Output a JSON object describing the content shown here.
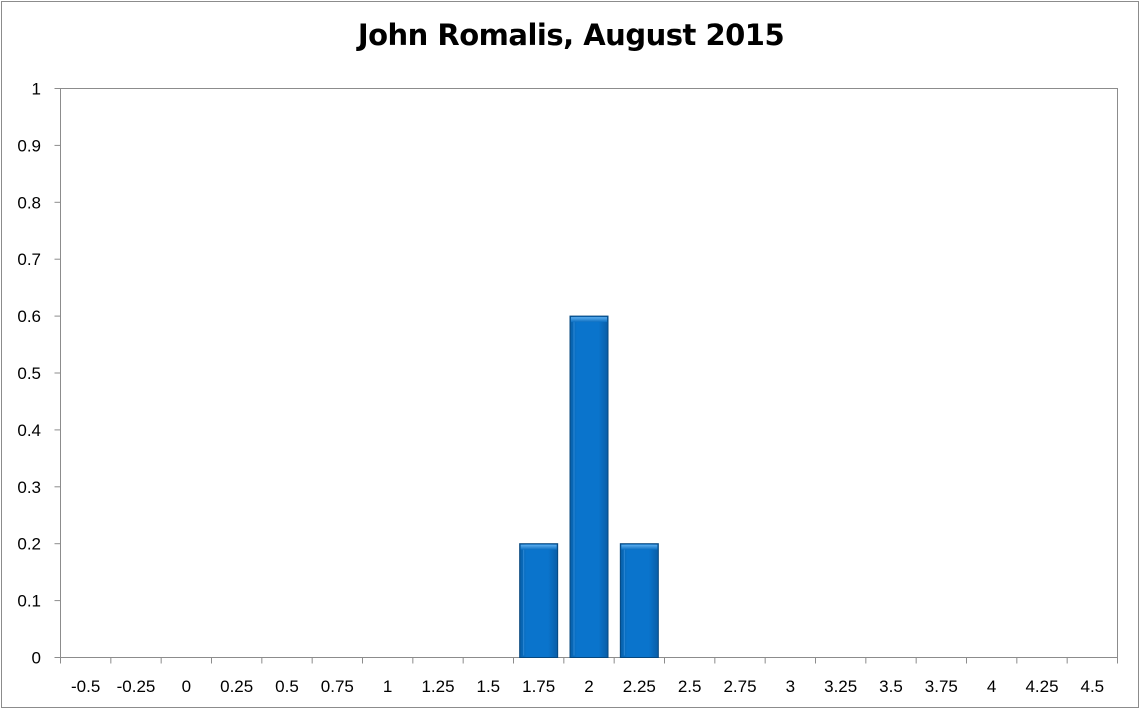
{
  "chart_data": {
    "type": "bar",
    "title": "John Romalis, August 2015",
    "xlabel": "",
    "ylabel": "",
    "categories": [
      "-0.5",
      "-0.25",
      "0",
      "0.25",
      "0.5",
      "0.75",
      "1",
      "1.25",
      "1.5",
      "1.75",
      "2",
      "2.25",
      "2.5",
      "2.75",
      "3",
      "3.25",
      "3.5",
      "3.75",
      "4",
      "4.25",
      "4.5"
    ],
    "values": [
      0,
      0,
      0,
      0,
      0,
      0,
      0,
      0,
      0,
      0.2,
      0.6,
      0.2,
      0,
      0,
      0,
      0,
      0,
      0,
      0,
      0,
      0
    ],
    "ylim": [
      0,
      1
    ],
    "yticks": [
      "0",
      "0.1",
      "0.2",
      "0.3",
      "0.4",
      "0.5",
      "0.6",
      "0.7",
      "0.8",
      "0.9",
      "1"
    ],
    "grid": false,
    "legend": "none",
    "bar_color": "#0a72c8"
  }
}
